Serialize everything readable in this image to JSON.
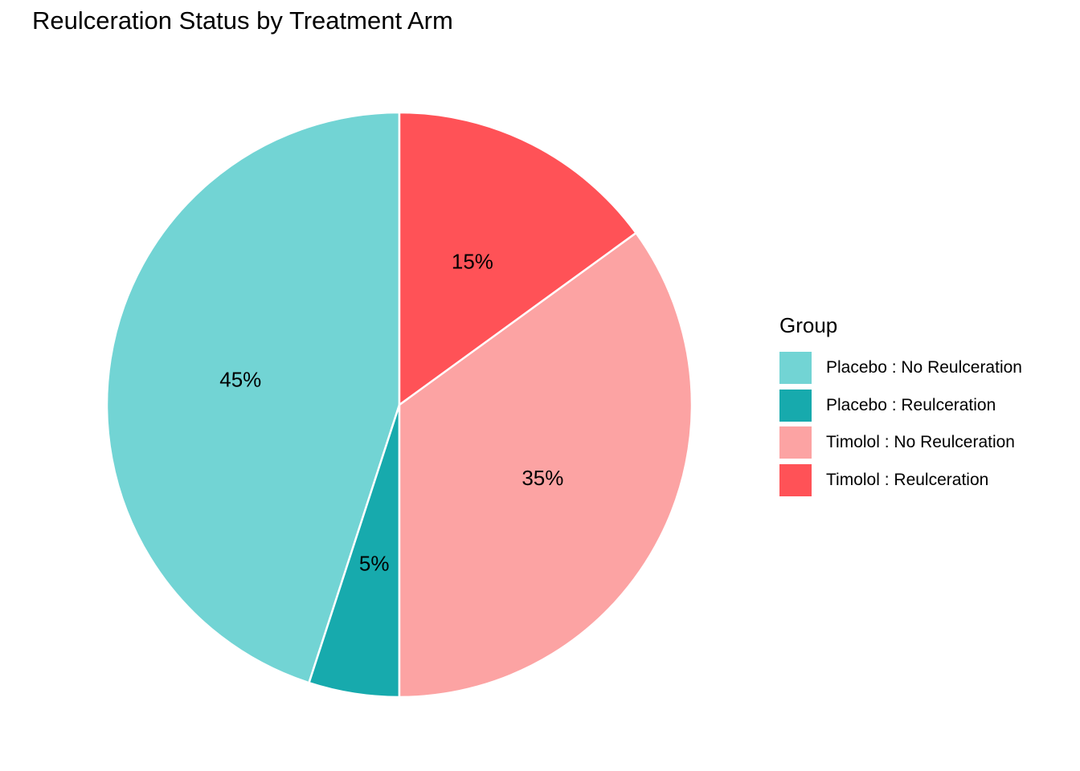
{
  "chart_data": {
    "type": "pie",
    "title": "Reulceration Status by Treatment Arm",
    "legend_title": "Group",
    "legend_position": "right",
    "slices": [
      {
        "label": "Placebo : No Reulceration",
        "value": 45,
        "display": "45%",
        "color": "#72D4D4"
      },
      {
        "label": "Placebo : Reulceration",
        "value": 5,
        "display": "5%",
        "color": "#17AAAD"
      },
      {
        "label": "Timolol : No Reulceration",
        "value": 35,
        "display": "35%",
        "color": "#FCA3A3"
      },
      {
        "label": "Timolol : Reulceration",
        "value": 15,
        "display": "15%",
        "color": "#FF5257"
      }
    ]
  }
}
